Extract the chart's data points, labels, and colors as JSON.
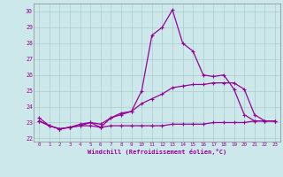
{
  "xlabel": "Windchill (Refroidissement éolien,°C)",
  "hours": [
    0,
    1,
    2,
    3,
    4,
    5,
    6,
    7,
    8,
    9,
    10,
    11,
    12,
    13,
    14,
    15,
    16,
    17,
    18,
    19,
    20,
    21,
    22,
    23
  ],
  "temp": [
    23.3,
    22.8,
    22.6,
    22.7,
    22.8,
    23.0,
    22.7,
    23.3,
    23.6,
    23.7,
    25.0,
    28.5,
    29.0,
    30.1,
    28.0,
    27.5,
    26.0,
    25.9,
    26.0,
    25.1,
    23.5,
    23.1,
    23.1,
    23.1
  ],
  "line2": [
    23.1,
    22.8,
    22.6,
    22.7,
    22.8,
    22.8,
    22.7,
    22.8,
    22.8,
    22.8,
    22.8,
    22.8,
    22.8,
    22.9,
    22.9,
    22.9,
    22.9,
    23.0,
    23.0,
    23.0,
    23.0,
    23.1,
    23.1,
    23.1
  ],
  "line3": [
    23.1,
    22.8,
    22.6,
    22.7,
    22.9,
    23.0,
    22.9,
    23.3,
    23.5,
    23.7,
    24.2,
    24.5,
    24.8,
    25.2,
    25.3,
    25.4,
    25.4,
    25.5,
    25.5,
    25.5,
    25.1,
    23.5,
    23.1,
    23.1
  ],
  "line_color": "#990099",
  "bg_color": "#cce8ea",
  "grid_color": "#aacccc",
  "ylim": [
    21.8,
    30.5
  ],
  "xlim": [
    -0.5,
    23.5
  ],
  "yticks": [
    22,
    23,
    24,
    25,
    26,
    27,
    28,
    29,
    30
  ],
  "xticks": [
    0,
    1,
    2,
    3,
    4,
    5,
    6,
    7,
    8,
    9,
    10,
    11,
    12,
    13,
    14,
    15,
    16,
    17,
    18,
    19,
    20,
    21,
    22,
    23
  ]
}
